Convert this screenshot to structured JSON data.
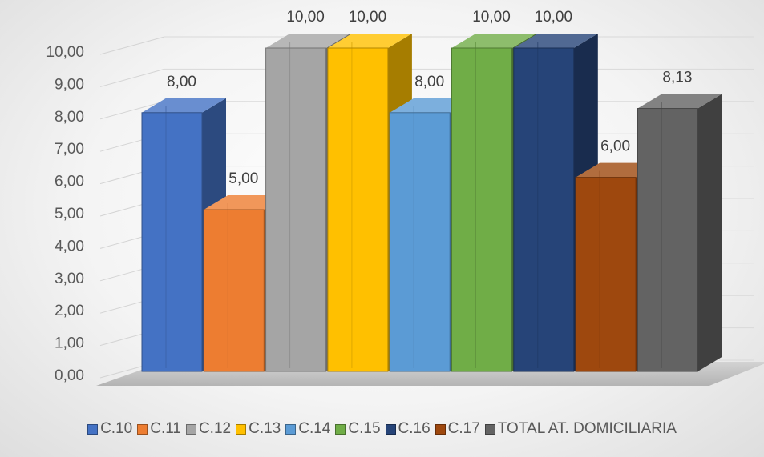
{
  "chart_data": {
    "type": "bar",
    "title": "",
    "xlabel": "",
    "ylabel": "",
    "ylim": [
      0,
      10
    ],
    "y_ticks": [
      "0,00",
      "1,00",
      "2,00",
      "3,00",
      "4,00",
      "5,00",
      "6,00",
      "7,00",
      "8,00",
      "9,00",
      "10,00"
    ],
    "categories": [
      "C.10",
      "C.11",
      "C.12",
      "C.13",
      "C.14",
      "C.15",
      "C.16",
      "C.17",
      "TOTAL AT. DOMICILIARIA"
    ],
    "values": [
      8.0,
      5.0,
      10.0,
      10.0,
      8.0,
      10.0,
      10.0,
      6.0,
      8.13
    ],
    "value_labels": [
      "8,00",
      "5,00",
      "10,00",
      "10,00",
      "8,00",
      "10,00",
      "10,00",
      "6,00",
      "8,13"
    ],
    "colors": [
      "#4472C4",
      "#ED7D31",
      "#A5A5A5",
      "#FFC000",
      "#5B9BD5",
      "#70AD47",
      "#264478",
      "#9E480E",
      "#636363"
    ],
    "legend": [
      "C.10",
      "C.11",
      "C.12",
      "C.13",
      "C.14",
      "C.15",
      "C.16",
      "C.17",
      "TOTAL AT. DOMICILIARIA"
    ],
    "legend_position": "bottom",
    "grid": true,
    "style": "3d-clustered-column"
  }
}
